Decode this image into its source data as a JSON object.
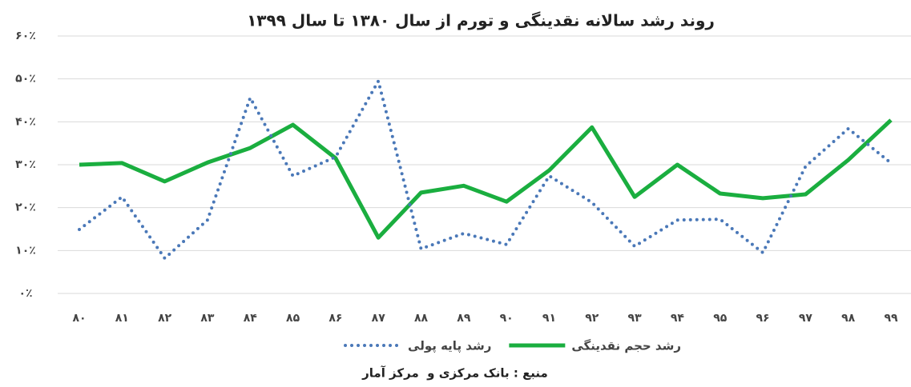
{
  "chart_data": {
    "type": "line",
    "title": "روند رشد سالانه نقدینگی و تورم از سال ۱۳۸۰ تا سال ۱۳۹۹",
    "categories": [
      "۸۰",
      "۸۱",
      "۸۲",
      "۸۳",
      "۸۴",
      "۸۵",
      "۸۶",
      "۸۷",
      "۸۸",
      "۸۹",
      "۹۰",
      "۹۱",
      "۹۲",
      "۹۳",
      "۹۴",
      "۹۵",
      "۹۶",
      "۹۷",
      "۹۸",
      "۹۹"
    ],
    "series": [
      {
        "name": "رشد حجم نقدینگی",
        "color": "#1aae3f",
        "style": "solid",
        "values": [
          30.0,
          30.4,
          26.1,
          30.5,
          33.9,
          39.3,
          31.5,
          13.0,
          23.5,
          25.1,
          21.4,
          28.7,
          38.7,
          22.5,
          30.0,
          23.3,
          22.2,
          23.1,
          31.1,
          40.4
        ]
      },
      {
        "name": "رشد پایه پولی",
        "color": "#4a78b8",
        "style": "dotted",
        "values": [
          14.9,
          22.5,
          8.2,
          17.1,
          45.6,
          27.4,
          31.8,
          49.5,
          10.4,
          14.0,
          11.4,
          27.4,
          21.2,
          11.0,
          17.1,
          17.3,
          9.5,
          29.6,
          38.4,
          30.4
        ]
      }
    ],
    "ylim": [
      0,
      60
    ],
    "yticks": [
      {
        "value": 0,
        "label": "۰٪"
      },
      {
        "value": 10,
        "label": "۱۰٪"
      },
      {
        "value": 20,
        "label": "۲۰٪"
      },
      {
        "value": 30,
        "label": "۳۰٪"
      },
      {
        "value": 40,
        "label": "۴۰٪"
      },
      {
        "value": 50,
        "label": "۵۰٪"
      },
      {
        "value": 60,
        "label": "۶۰٪"
      }
    ],
    "grid": true,
    "source": "منبع : بانک مرکزی و  مرکز آمار"
  }
}
